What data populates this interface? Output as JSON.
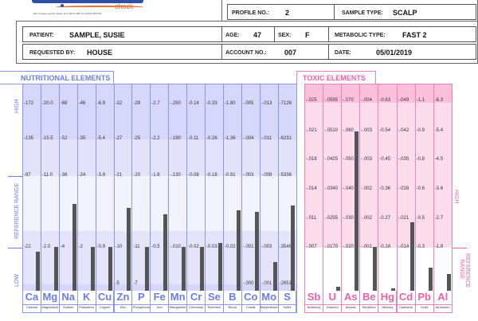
{
  "header": {
    "logo_text": "check",
    "address": "Bull Cottage Lenham Heath Kent ME17 2BP  Tel: 01622 850 500",
    "profile_label": "PROFILE NO.:",
    "profile": "2",
    "sample_label": "SAMPLE TYPE:",
    "sample": "SCALP",
    "patient_label": "PATIENT:",
    "patient": "SAMPLE, SUSIE",
    "age_label": "AGE:",
    "age": "47",
    "sex_label": "SEX:",
    "sex": "F",
    "metabolic_label": "METABOLIC TYPE:",
    "metabolic": "FAST 2",
    "requested_label": "REQUESTED BY:",
    "requested": "HOUSE",
    "account_label": "ACCOUNT NO.:",
    "account": "007",
    "date_label": "DATE:",
    "date": "05/01/2019"
  },
  "nutritional": {
    "title": "NUTRITIONAL ELEMENTS",
    "side_high": "HIGH",
    "side_ref": "REFERENCE RANGE",
    "side_low": "LOW",
    "color": "#6b7cf0",
    "elements": [
      {
        "sym": "Ca",
        "name": "Calcium",
        "ticks": [
          "172",
          "135",
          "97",
          "22",
          ""
        ],
        "level": 0.19
      },
      {
        "sym": "Mg",
        "name": "Magnesium",
        "ticks": [
          "20.0",
          "15.5",
          "11.0",
          "2.0",
          ""
        ],
        "level": 0.21
      },
      {
        "sym": "Na",
        "name": "Sodium",
        "ticks": [
          "68",
          "52",
          "36",
          "4",
          ""
        ],
        "level": 0.42
      },
      {
        "sym": "K",
        "name": "Potassium",
        "ticks": [
          "46",
          "35",
          "24",
          "2",
          ""
        ],
        "level": 0.21
      },
      {
        "sym": "Cu",
        "name": "Copper",
        "ticks": [
          "6.9",
          "5.4",
          "3.9",
          "0.9",
          ""
        ],
        "level": 0.21
      },
      {
        "sym": "Zn",
        "name": "Zinc",
        "ticks": [
          "32",
          "27",
          "21",
          "10",
          "5"
        ],
        "level": 0.4
      },
      {
        "sym": "P",
        "name": "Phosphorus",
        "ticks": [
          "29",
          "25",
          "20",
          "11",
          "7"
        ],
        "level": 0.21
      },
      {
        "sym": "Fe",
        "name": "Iron",
        "ticks": [
          "2.7",
          "2.2",
          "1.6",
          "0.5",
          ""
        ],
        "level": 0.37
      },
      {
        "sym": "Mn",
        "name": "Manganese",
        "ticks": [
          ".250",
          ".190",
          ".130",
          ".010",
          ""
        ],
        "level": 0.21
      },
      {
        "sym": "Cr",
        "name": "Chromium",
        "ticks": [
          "0.14",
          "0.11",
          "0.08",
          "0.02",
          ""
        ],
        "level": 0.21
      },
      {
        "sym": "Se",
        "name": "Selenium",
        "ticks": [
          "0.33",
          "0.26",
          "0.18",
          "0.03",
          ""
        ],
        "level": 0.23
      },
      {
        "sym": "B",
        "name": "Boron",
        "ticks": [
          "1.80",
          "1.36",
          "0.91",
          "0.02",
          ""
        ],
        "level": 0.39
      },
      {
        "sym": "Co",
        "name": "Cobalt",
        "ticks": [
          ".005",
          ".004",
          ".003",
          ".001",
          ".000"
        ],
        "level": 0.38
      },
      {
        "sym": "Mo",
        "name": "Molybdenum",
        "ticks": [
          ".013",
          ".011",
          ".008",
          ".003",
          ".001"
        ],
        "level": 0.14
      },
      {
        "sym": "S",
        "name": "Sulfur",
        "ticks": [
          "7126",
          "6231",
          "5336",
          "3546",
          "2651"
        ],
        "level": 0.41
      }
    ]
  },
  "toxic": {
    "title": "TOXIC ELEMENTS",
    "side_high": "HIGH",
    "side_ref": "REFERENCE RANGE",
    "color": "#f060a8",
    "elements": [
      {
        "sym": "Sb",
        "name": "Antimony",
        "ticks": [
          ".025",
          ".021",
          ".018",
          ".014",
          ".011",
          ".007"
        ],
        "level": 0
      },
      {
        "sym": "U",
        "name": "Uranium",
        "ticks": [
          ".0595",
          ".0510",
          ".0425",
          ".0340",
          ".0255",
          ".0170"
        ],
        "level": 0.02
      },
      {
        "sym": "As",
        "name": "Arsenic",
        "ticks": [
          ".070",
          ".060",
          ".050",
          ".040",
          ".030",
          ".020"
        ],
        "level": 0.77
      },
      {
        "sym": "Be",
        "name": "Beryllium",
        "ticks": [
          ".004",
          ".003",
          ".003",
          ".002",
          ".002",
          ".001"
        ],
        "level": 0.21
      },
      {
        "sym": "Hg",
        "name": "Mercury",
        "ticks": [
          "0.63",
          "0.54",
          "0.45",
          "0.36",
          "0.27",
          "0.18"
        ],
        "level": 0.01
      },
      {
        "sym": "Cd",
        "name": "Cadmium",
        "ticks": [
          ".049",
          ".042",
          ".035",
          ".028",
          ".021",
          ".014"
        ],
        "level": 0.33
      },
      {
        "sym": "Pb",
        "name": "Lead",
        "ticks": [
          "1.1",
          "0.9",
          "0.8",
          "0.6",
          "0.5",
          "0.3"
        ],
        "level": 0.11
      },
      {
        "sym": "Al",
        "name": "Aluminum",
        "ticks": [
          "6.3",
          "5.4",
          "4.5",
          "3.6",
          "2.7",
          "1.8"
        ],
        "level": 0.08
      }
    ]
  }
}
